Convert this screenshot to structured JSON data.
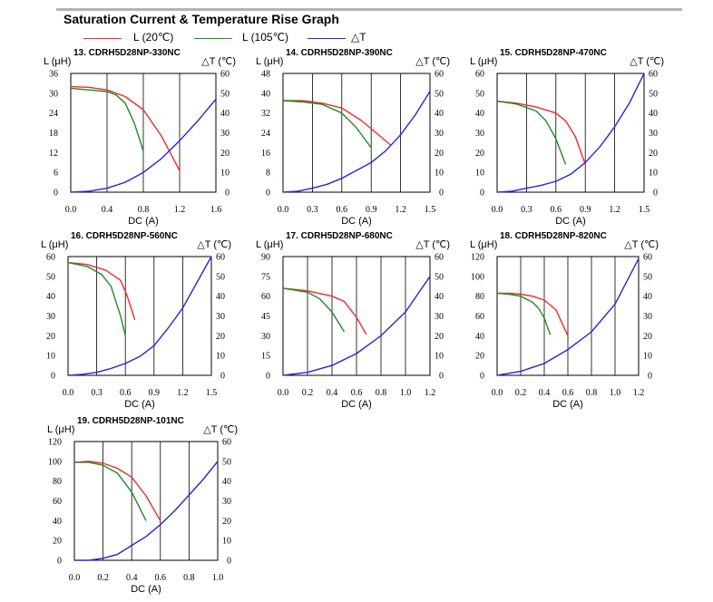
{
  "title": "Saturation Current & Temperature Rise  Graph",
  "legend": [
    {
      "label": "L (20℃)",
      "color": "#ee2b2b"
    },
    {
      "label": "L (105℃)",
      "color": "#1f8c1f"
    },
    {
      "label": "△T",
      "color": "#2626d6"
    }
  ],
  "chart_data": [
    {
      "type": "line",
      "title": "13. CDRH5D28NP-330NC",
      "ylabel": "L (μH)",
      "y2label": "△T (℃)",
      "xlabel": "DC (A)",
      "xlim": [
        0,
        1.6
      ],
      "ylim": [
        0,
        36
      ],
      "y2lim": [
        0,
        60
      ],
      "xticks": [
        "0.0",
        "0.4",
        "0.8",
        "1.2",
        "1.6"
      ],
      "yticks": [
        "0",
        "6",
        "12",
        "18",
        "24",
        "30",
        "36"
      ],
      "y2ticks": [
        "0",
        "10",
        "20",
        "30",
        "40",
        "50",
        "60"
      ],
      "series": [
        {
          "name": "L (20℃)",
          "axis": "left",
          "x": [
            0,
            0.2,
            0.4,
            0.6,
            0.8,
            1.0,
            1.2
          ],
          "y": [
            32,
            31.8,
            31,
            29,
            25,
            17,
            6.5
          ]
        },
        {
          "name": "L (105℃)",
          "axis": "left",
          "x": [
            0,
            0.2,
            0.4,
            0.5,
            0.6,
            0.7,
            0.8
          ],
          "y": [
            31.5,
            31,
            30.5,
            29.5,
            27,
            21,
            12.5
          ]
        },
        {
          "name": "△T",
          "axis": "right",
          "x": [
            0,
            0.2,
            0.4,
            0.6,
            0.8,
            1.0,
            1.2,
            1.4,
            1.6
          ],
          "y": [
            0,
            0.5,
            2,
            5,
            10,
            17,
            26,
            36,
            47
          ]
        }
      ]
    },
    {
      "type": "line",
      "title": "14. CDRH5D28NP-390NC",
      "ylabel": "L (μH)",
      "y2label": "△T (℃)",
      "xlabel": "DC (A)",
      "xlim": [
        0,
        1.5
      ],
      "ylim": [
        0,
        48
      ],
      "y2lim": [
        0,
        60
      ],
      "xticks": [
        "0.0",
        "0.3",
        "0.6",
        "0.9",
        "1.2",
        "1.5"
      ],
      "yticks": [
        "0",
        "8",
        "16",
        "24",
        "32",
        "40",
        "48"
      ],
      "y2ticks": [
        "0",
        "10",
        "20",
        "30",
        "40",
        "50",
        "60"
      ],
      "series": [
        {
          "name": "L (20℃)",
          "axis": "left",
          "x": [
            0,
            0.2,
            0.4,
            0.6,
            0.8,
            1.1
          ],
          "y": [
            37,
            37,
            36,
            34,
            29,
            19
          ]
        },
        {
          "name": "L (105℃)",
          "axis": "left",
          "x": [
            0,
            0.2,
            0.4,
            0.6,
            0.75,
            0.9
          ],
          "y": [
            37,
            36.5,
            35.5,
            32,
            26,
            18
          ]
        },
        {
          "name": "△T",
          "axis": "right",
          "x": [
            0,
            0.15,
            0.3,
            0.45,
            0.6,
            0.75,
            0.9,
            1.05,
            1.2,
            1.35,
            1.5
          ],
          "y": [
            0,
            0.5,
            2,
            4,
            7,
            11,
            15,
            21,
            29,
            39,
            51
          ]
        }
      ]
    },
    {
      "type": "line",
      "title": "15. CDRH5D28NP-470NC",
      "ylabel": "L (μH)",
      "y2label": "△T (℃)",
      "xlabel": "DC (A)",
      "xlim": [
        0,
        1.5
      ],
      "ylim": [
        0,
        60
      ],
      "y2lim": [
        0,
        60
      ],
      "xticks": [
        "0.0",
        "0.3",
        "0.6",
        "0.9",
        "1.2",
        "1.5"
      ],
      "yticks": [
        "0",
        "10",
        "20",
        "30",
        "40",
        "50",
        "60"
      ],
      "y2ticks": [
        "0",
        "10",
        "20",
        "30",
        "40",
        "50",
        "60"
      ],
      "series": [
        {
          "name": "L (20℃)",
          "axis": "left",
          "x": [
            0,
            0.2,
            0.4,
            0.6,
            0.7,
            0.8,
            0.9
          ],
          "y": [
            46,
            45,
            43,
            40,
            36,
            28,
            14
          ]
        },
        {
          "name": "L (105℃)",
          "axis": "left",
          "x": [
            0,
            0.2,
            0.4,
            0.5,
            0.6,
            0.7
          ],
          "y": [
            46,
            44.5,
            41,
            36,
            27,
            14
          ]
        },
        {
          "name": "△T",
          "axis": "right",
          "x": [
            0,
            0.15,
            0.3,
            0.45,
            0.6,
            0.75,
            0.9,
            1.05,
            1.2,
            1.35,
            1.5
          ],
          "y": [
            0,
            0.5,
            2,
            3.5,
            5.5,
            9,
            15,
            23,
            33,
            45,
            60
          ]
        }
      ]
    },
    {
      "type": "line",
      "title": "16. CDRH5D28NP-560NC",
      "ylabel": "L (μH)",
      "y2label": "△T (℃)",
      "xlabel": "DC (A)",
      "xlim": [
        0,
        1.5
      ],
      "ylim": [
        0,
        60
      ],
      "y2lim": [
        0,
        60
      ],
      "xticks": [
        "0.0",
        "0.3",
        "0.6",
        "0.9",
        "1.2",
        "1.5"
      ],
      "yticks": [
        "0",
        "10",
        "20",
        "30",
        "40",
        "50",
        "60"
      ],
      "y2ticks": [
        "0",
        "10",
        "20",
        "30",
        "40",
        "50",
        "60"
      ],
      "series": [
        {
          "name": "L (20℃)",
          "axis": "left",
          "x": [
            0,
            0.2,
            0.4,
            0.55,
            0.62,
            0.7
          ],
          "y": [
            57,
            56,
            53,
            48,
            40,
            28
          ]
        },
        {
          "name": "L (105℃)",
          "axis": "left",
          "x": [
            0,
            0.2,
            0.35,
            0.45,
            0.55,
            0.6
          ],
          "y": [
            57,
            55,
            51,
            45,
            30,
            20
          ]
        },
        {
          "name": "△T",
          "axis": "right",
          "x": [
            0,
            0.15,
            0.3,
            0.45,
            0.6,
            0.75,
            0.9,
            1.05,
            1.2,
            1.35,
            1.5
          ],
          "y": [
            0,
            0.5,
            1.5,
            3.5,
            6,
            9.5,
            15,
            24,
            34,
            47,
            60
          ]
        }
      ]
    },
    {
      "type": "line",
      "title": "17. CDRH5D28NP-680NC",
      "ylabel": "L (μH)",
      "y2label": "△T (℃)",
      "xlabel": "DC (A)",
      "xlim": [
        0,
        1.2
      ],
      "ylim": [
        0,
        90
      ],
      "y2lim": [
        0,
        60
      ],
      "xticks": [
        "0.0",
        "0.2",
        "0.4",
        "0.6",
        "0.8",
        "1.0",
        "1.2"
      ],
      "yticks": [
        "0",
        "15",
        "30",
        "45",
        "60",
        "75",
        "90"
      ],
      "y2ticks": [
        "0",
        "10",
        "20",
        "30",
        "40",
        "50",
        "60"
      ],
      "series": [
        {
          "name": "L (20℃)",
          "axis": "left",
          "x": [
            0,
            0.2,
            0.4,
            0.5,
            0.6,
            0.68
          ],
          "y": [
            66,
            64,
            60,
            56,
            44,
            31
          ]
        },
        {
          "name": "L (105℃)",
          "axis": "left",
          "x": [
            0,
            0.2,
            0.3,
            0.4,
            0.5
          ],
          "y": [
            66,
            63,
            58,
            48,
            33
          ]
        },
        {
          "name": "△T",
          "axis": "right",
          "x": [
            0,
            0.2,
            0.4,
            0.6,
            0.8,
            1.0,
            1.2
          ],
          "y": [
            0,
            1.5,
            5,
            11,
            20,
            32,
            50
          ]
        }
      ]
    },
    {
      "type": "line",
      "title": "18. CDRH5D28NP-820NC",
      "ylabel": "L (μH)",
      "y2label": "△T (℃)",
      "xlabel": "DC (A)",
      "xlim": [
        0,
        1.2
      ],
      "ylim": [
        0,
        120
      ],
      "y2lim": [
        0,
        60
      ],
      "xticks": [
        "0.0",
        "0.2",
        "0.4",
        "0.6",
        "0.8",
        "1.0",
        "1.2"
      ],
      "yticks": [
        "0",
        "20",
        "40",
        "60",
        "80",
        "100",
        "120"
      ],
      "y2ticks": [
        "0",
        "10",
        "20",
        "30",
        "40",
        "50",
        "60"
      ],
      "series": [
        {
          "name": "L (20℃)",
          "axis": "left",
          "x": [
            0,
            0.1,
            0.2,
            0.3,
            0.4,
            0.5,
            0.6
          ],
          "y": [
            83,
            83,
            82,
            80,
            76,
            66,
            40
          ]
        },
        {
          "name": "L (105℃)",
          "axis": "left",
          "x": [
            0,
            0.1,
            0.2,
            0.3,
            0.35,
            0.4,
            0.45
          ],
          "y": [
            83,
            82,
            80,
            74,
            68,
            58,
            41
          ]
        },
        {
          "name": "△T",
          "axis": "right",
          "x": [
            0,
            0.2,
            0.4,
            0.6,
            0.8,
            1.0,
            1.2
          ],
          "y": [
            0,
            2,
            6,
            13,
            22,
            36,
            59
          ]
        }
      ]
    },
    {
      "type": "line",
      "title": "19. CDRH5D28NP-101NC",
      "ylabel": "L (μH)",
      "y2label": "△T (℃)",
      "xlabel": "DC (A)",
      "xlim": [
        0,
        1.0
      ],
      "ylim": [
        0,
        120
      ],
      "y2lim": [
        0,
        60
      ],
      "xticks": [
        "0.0",
        "0.2",
        "0.4",
        "0.6",
        "0.8",
        "1.0"
      ],
      "yticks": [
        "0",
        "20",
        "40",
        "60",
        "80",
        "100",
        "120"
      ],
      "y2ticks": [
        "0",
        "10",
        "20",
        "30",
        "40",
        "50",
        "60"
      ],
      "series": [
        {
          "name": "L (20℃)",
          "axis": "left",
          "x": [
            0,
            0.1,
            0.2,
            0.3,
            0.4,
            0.5,
            0.6
          ],
          "y": [
            99,
            100,
            98,
            93,
            84,
            65,
            40
          ]
        },
        {
          "name": "L (105℃)",
          "axis": "left",
          "x": [
            0,
            0.1,
            0.2,
            0.3,
            0.4,
            0.5
          ],
          "y": [
            99,
            99,
            96,
            88,
            69,
            40
          ]
        },
        {
          "name": "△T",
          "axis": "right",
          "x": [
            0,
            0.1,
            0.2,
            0.3,
            0.4,
            0.5,
            0.6,
            0.7,
            0.8,
            0.9,
            1.0
          ],
          "y": [
            0,
            0,
            1,
            3,
            7.5,
            12,
            18,
            25,
            33,
            41,
            50
          ]
        }
      ]
    }
  ]
}
